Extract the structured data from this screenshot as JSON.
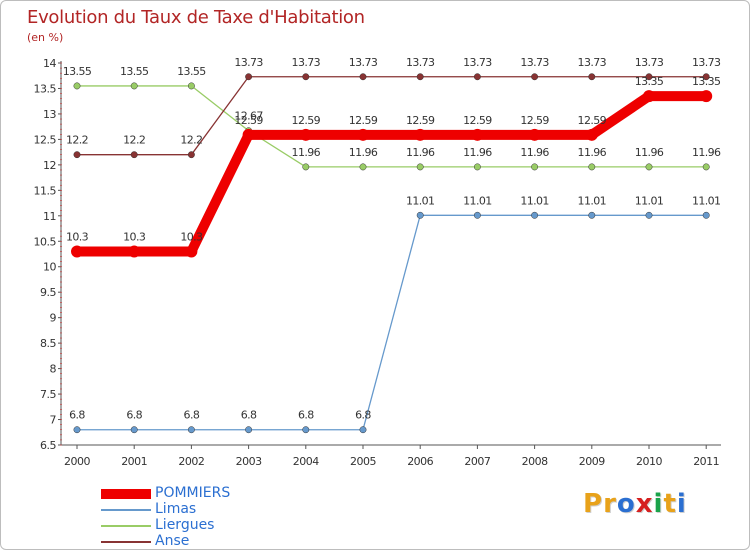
{
  "title": "Evolution du Taux de Taxe d'Habitation",
  "unit": "(en %)",
  "brand": {
    "text": "Proxiti",
    "letters": [
      "P",
      "r",
      "o",
      "x",
      "i",
      "t",
      "i"
    ],
    "letter_colors": [
      "#e8a21a",
      "#e8a21a",
      "#2b6fd1",
      "#d62020",
      "#1aa34a",
      "#e8a21a",
      "#2b6fd1"
    ]
  },
  "chart_data": {
    "type": "line",
    "title": "Evolution du Taux de Taxe d'Habitation",
    "ylabel": "(en %)",
    "xlabel": "",
    "x": [
      "2000",
      "2001",
      "2002",
      "2003",
      "2004",
      "2005",
      "2006",
      "2007",
      "2008",
      "2009",
      "2010",
      "2011"
    ],
    "ylim": [
      6.5,
      14
    ],
    "yticks": [
      "6.5",
      "7",
      "7.5",
      "8",
      "8.5",
      "9",
      "9.5",
      "10",
      "10.5",
      "11",
      "11.5",
      "12",
      "12.5",
      "13",
      "13.5",
      "14"
    ],
    "grid": false,
    "legend_position": "bottom-left",
    "series": [
      {
        "name": "POMMIERS",
        "color": "#ee0000",
        "emphasis": true,
        "values": [
          10.3,
          10.3,
          10.3,
          12.59,
          12.59,
          12.59,
          12.59,
          12.59,
          12.59,
          12.59,
          13.35,
          13.35
        ],
        "labels": [
          "10.3",
          "10.3",
          "10.3",
          "12.59",
          "12.59",
          "12.59",
          "12.59",
          "12.59",
          "12.59",
          "12.59",
          "13.35",
          "13.35"
        ]
      },
      {
        "name": "Limas",
        "color": "#6699cc",
        "emphasis": false,
        "values": [
          6.8,
          6.8,
          6.8,
          6.8,
          6.8,
          6.8,
          11.01,
          11.01,
          11.01,
          11.01,
          11.01,
          11.01
        ],
        "labels": [
          "6.8",
          "6.8",
          "6.8",
          "6.8",
          "6.8",
          "6.8",
          "11.01",
          "11.01",
          "11.01",
          "11.01",
          "11.01",
          "11.01"
        ]
      },
      {
        "name": "Liergues",
        "color": "#99cc66",
        "emphasis": false,
        "values": [
          13.55,
          13.55,
          13.55,
          12.67,
          11.96,
          11.96,
          11.96,
          11.96,
          11.96,
          11.96,
          11.96,
          11.96
        ],
        "labels": [
          "13.55",
          "13.55",
          "13.55",
          "12.67",
          "11.96",
          "11.96",
          "11.96",
          "11.96",
          "11.96",
          "11.96",
          "11.96",
          "11.96"
        ]
      },
      {
        "name": "Anse",
        "color": "#883333",
        "emphasis": false,
        "values": [
          12.2,
          12.2,
          12.2,
          13.73,
          13.73,
          13.73,
          13.73,
          13.73,
          13.73,
          13.73,
          13.73,
          13.73
        ],
        "labels": [
          "12.2",
          "12.2",
          "12.2",
          "13.73",
          "13.73",
          "13.73",
          "13.73",
          "13.73",
          "13.73",
          "13.73",
          "13.73",
          "13.73"
        ]
      }
    ]
  }
}
